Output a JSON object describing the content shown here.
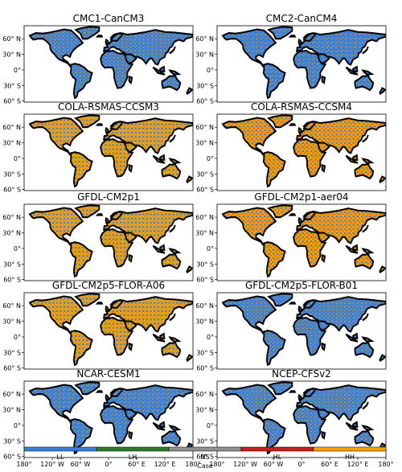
{
  "panels": [
    {
      "title": "CMC1-CanCM3"
    },
    {
      "title": "CMC2-CanCM4"
    },
    {
      "title": "COLA-RSMAS-CCSM3"
    },
    {
      "title": "COLA-RSMAS-CCSM4"
    },
    {
      "title": "GFDL-CM2p1"
    },
    {
      "title": "GFDL-CM2p1-aer04"
    },
    {
      "title": "GFDL-CM2p5-FLOR-A06"
    },
    {
      "title": "GFDL-CM2p5-FLOR-B01"
    },
    {
      "title": "NCAR-CESM1"
    },
    {
      "title": "NCEP-CFSv2"
    }
  ],
  "lat_ticks": [
    "60° N",
    "30° N",
    "0°",
    "30° S",
    "60° S"
  ],
  "lon_ticks": [
    "180°",
    "120° W",
    "60° W",
    "0°",
    "60° E",
    "120° E",
    "180°"
  ],
  "legend": {
    "title": "Case",
    "categories": [
      {
        "label": "LL",
        "color": "#3a7fd6"
      },
      {
        "label": "LH",
        "color": "#2f7d2c"
      },
      {
        "label": "NS",
        "color": "#909090"
      },
      {
        "label": "HL",
        "color": "#c81e1e"
      },
      {
        "label": "HH",
        "color": "#f5a000"
      }
    ]
  },
  "colors": {
    "ocean": "#ffffff",
    "coastline": "#000000"
  }
}
